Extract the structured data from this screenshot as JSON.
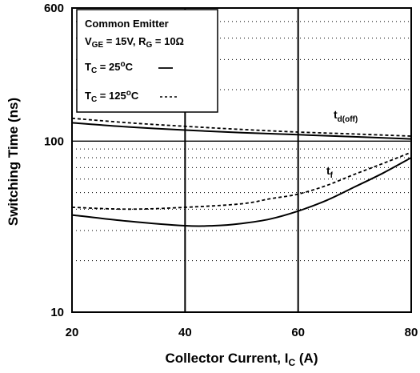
{
  "chart_data": {
    "type": "line",
    "xlabel": {
      "main": "Collector Current, I",
      "sub": "C",
      "unit": " (A)"
    },
    "ylabel": "Switching Time (ns)",
    "xlim": [
      20,
      80
    ],
    "ylim": [
      10,
      600
    ],
    "y_scale": "log",
    "x_ticks": [
      "20",
      "40",
      "60",
      "80"
    ],
    "y_ticks": [
      "10",
      "100",
      "600"
    ],
    "grid": "major solid, minor dotted",
    "legend": {
      "position": "top-left",
      "line1": "Common Emitter",
      "line2_vge": "V",
      "line2_vge_sub": "GE",
      "line2_vge_val": " = 15V, R",
      "line2_rg_sub": "G",
      "line2_rg_val": " = 10Ω",
      "tc": "T",
      "tc_sub": "C",
      "tc1_val": " = 25",
      "tc2_val": " = 125",
      "deg": "o",
      "unit_c": "C",
      "tc1_style": "——",
      "tc2_style": "- - -"
    },
    "annotations": {
      "tdoff_main": "t",
      "tdoff_sub": "d(off)",
      "tf_main": "t",
      "tf_sub": "f"
    },
    "series": [
      {
        "curve": "td(off)",
        "temp": "25C",
        "style": "solid",
        "x": [
          20,
          30,
          40,
          50,
          60,
          70,
          80
        ],
        "y": [
          128,
          121,
          116,
          112,
          109,
          106,
          103
        ]
      },
      {
        "curve": "td(off)",
        "temp": "125C",
        "style": "dashed",
        "x": [
          20,
          30,
          40,
          50,
          60,
          70,
          80
        ],
        "y": [
          136,
          128,
          122,
          117,
          113,
          110,
          107
        ]
      },
      {
        "curve": "tf",
        "temp": "25C",
        "style": "solid",
        "x": [
          20,
          30,
          40,
          45,
          50,
          55,
          60,
          65,
          70,
          75,
          80
        ],
        "y": [
          37,
          34,
          32,
          32,
          33,
          35,
          39,
          45,
          54,
          65,
          80
        ]
      },
      {
        "curve": "tf",
        "temp": "125C",
        "style": "dashed",
        "x": [
          20,
          30,
          40,
          50,
          55,
          60,
          65,
          70,
          75,
          80
        ],
        "y": [
          41,
          40,
          41,
          43,
          46,
          49,
          55,
          64,
          74,
          86
        ]
      }
    ]
  }
}
